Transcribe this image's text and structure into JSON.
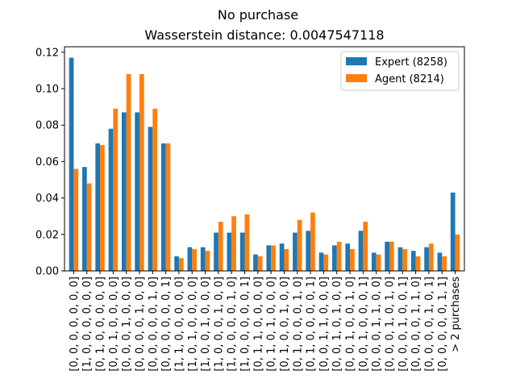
{
  "chart_data": {
    "type": "bar",
    "title": "No purchase",
    "subtitle": "Wasserstein distance: 0.0047547118",
    "xlabel": "",
    "ylabel": "",
    "ylim": [
      0,
      0.123
    ],
    "yticks": [
      "0.00",
      "0.02",
      "0.04",
      "0.06",
      "0.08",
      "0.10",
      "0.12"
    ],
    "legend_position": "top-right",
    "categories": [
      "[0, 0, 0, 0, 0, 0, 0]",
      "[1, 0, 0, 0, 0, 0, 0]",
      "[0, 1, 0, 0, 0, 0, 0]",
      "[0, 0, 1, 0, 0, 0, 0]",
      "[0, 0, 0, 1, 0, 0, 0]",
      "[0, 0, 0, 0, 1, 0, 0]",
      "[0, 0, 0, 0, 0, 1, 0]",
      "[0, 0, 0, 0, 0, 0, 1]",
      "[1, 1, 0, 0, 0, 0, 0]",
      "[1, 0, 1, 0, 0, 0, 0]",
      "[1, 0, 0, 1, 0, 0, 0]",
      "[1, 0, 0, 0, 1, 0, 0]",
      "[1, 0, 0, 0, 0, 1, 0]",
      "[1, 0, 0, 0, 0, 0, 1]",
      "[0, 1, 1, 0, 0, 0, 0]",
      "[0, 1, 0, 1, 0, 0, 0]",
      "[0, 1, 0, 0, 1, 0, 0]",
      "[0, 1, 0, 0, 0, 1, 0]",
      "[0, 1, 0, 0, 0, 0, 1]",
      "[0, 0, 1, 1, 0, 0, 0]",
      "[0, 0, 1, 0, 1, 0, 0]",
      "[0, 0, 1, 0, 0, 1, 0]",
      "[0, 0, 1, 0, 0, 0, 1]",
      "[0, 0, 0, 1, 1, 0, 0]",
      "[0, 0, 0, 1, 0, 1, 0]",
      "[0, 0, 0, 1, 0, 0, 1]",
      "[0, 0, 0, 0, 1, 1, 0]",
      "[0, 0, 0, 0, 1, 0, 1]",
      "[0, 0, 0, 0, 0, 1, 1]",
      "> 2 purchases"
    ],
    "series": [
      {
        "name": "Expert (8258)",
        "color": "#1f77b4",
        "values": [
          0.117,
          0.057,
          0.07,
          0.078,
          0.087,
          0.087,
          0.079,
          0.07,
          0.008,
          0.013,
          0.013,
          0.021,
          0.021,
          0.021,
          0.009,
          0.014,
          0.015,
          0.021,
          0.022,
          0.01,
          0.014,
          0.015,
          0.022,
          0.01,
          0.016,
          0.013,
          0.011,
          0.013,
          0.01,
          0.043
        ]
      },
      {
        "name": "Agent (8214)",
        "color": "#ff7f0e",
        "values": [
          0.056,
          0.048,
          0.069,
          0.089,
          0.108,
          0.108,
          0.089,
          0.07,
          0.007,
          0.012,
          0.011,
          0.027,
          0.03,
          0.031,
          0.008,
          0.014,
          0.012,
          0.028,
          0.032,
          0.009,
          0.016,
          0.012,
          0.027,
          0.009,
          0.016,
          0.012,
          0.008,
          0.015,
          0.008,
          0.02
        ]
      }
    ]
  }
}
